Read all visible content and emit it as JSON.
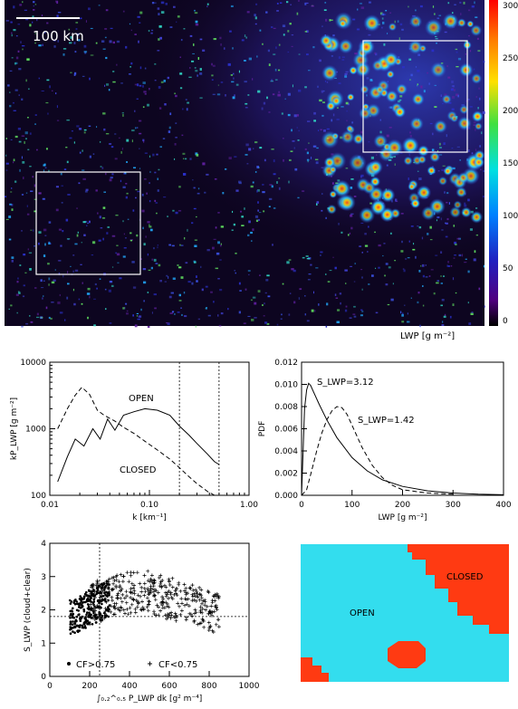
{
  "image_panel": {
    "scale_bar_label": "100 km",
    "colorbar": {
      "ticks": [
        "300",
        "250",
        "200",
        "150",
        "100",
        "50",
        "0"
      ],
      "label": "LWP [g m⁻²]"
    }
  },
  "chart_data": [
    {
      "type": "line",
      "panel": "spectra",
      "xlabel": "k [km⁻¹]",
      "ylabel": "kP_LWP [g m⁻²]",
      "xscale": "log",
      "yscale": "log",
      "xlim": [
        0.01,
        1.0
      ],
      "ylim": [
        100,
        10000
      ],
      "x_ticks": [
        "0.01",
        "0.10",
        "1.00"
      ],
      "y_ticks": [
        "100",
        "1000",
        "10000"
      ],
      "vlines": [
        0.2,
        0.5
      ],
      "series": [
        {
          "name": "OPEN",
          "style": "solid",
          "x": [
            0.012,
            0.015,
            0.018,
            0.022,
            0.027,
            0.032,
            0.038,
            0.045,
            0.055,
            0.07,
            0.09,
            0.12,
            0.16,
            0.2,
            0.25,
            0.3,
            0.38,
            0.45,
            0.5
          ],
          "y": [
            160,
            380,
            700,
            550,
            1000,
            700,
            1400,
            950,
            1600,
            1800,
            2000,
            1900,
            1600,
            1100,
            800,
            600,
            420,
            320,
            290
          ]
        },
        {
          "name": "CLOSED",
          "style": "dashed",
          "x": [
            0.012,
            0.015,
            0.018,
            0.021,
            0.025,
            0.03,
            0.035,
            0.045,
            0.055,
            0.07,
            0.09,
            0.12,
            0.16,
            0.2,
            0.25,
            0.3,
            0.38,
            0.45
          ],
          "y": [
            1000,
            2000,
            3200,
            4200,
            3300,
            1900,
            1600,
            1300,
            1050,
            850,
            650,
            480,
            350,
            260,
            190,
            150,
            115,
            100
          ]
        }
      ]
    },
    {
      "type": "line",
      "panel": "pdf",
      "xlabel": "LWP [g m⁻²]",
      "ylabel": "PDF",
      "xlim": [
        0,
        400
      ],
      "ylim": [
        0,
        0.012
      ],
      "x_ticks": [
        "0",
        "100",
        "200",
        "300",
        "400"
      ],
      "y_ticks": [
        "0.000",
        "0.002",
        "0.004",
        "0.006",
        "0.008",
        "0.010",
        "0.012"
      ],
      "annotations": [
        "S_LWP=3.12",
        "S_LWP=1.42"
      ],
      "series": [
        {
          "style": "solid",
          "x": [
            0,
            3,
            6,
            10,
            14,
            18,
            25,
            35,
            50,
            70,
            100,
            130,
            160,
            200,
            250,
            300,
            350,
            400
          ],
          "y": [
            0.0,
            0.004,
            0.0078,
            0.0095,
            0.0101,
            0.0099,
            0.0092,
            0.0082,
            0.0068,
            0.0052,
            0.0034,
            0.0022,
            0.0014,
            0.0008,
            0.0004,
            0.0002,
            0.0001,
            5e-05
          ]
        },
        {
          "style": "dashed",
          "x": [
            0,
            10,
            20,
            30,
            40,
            50,
            60,
            70,
            80,
            90,
            100,
            120,
            140,
            160,
            180,
            200,
            250,
            300
          ],
          "y": [
            0.0,
            0.0005,
            0.0022,
            0.004,
            0.0056,
            0.0068,
            0.0076,
            0.008,
            0.0079,
            0.0073,
            0.0063,
            0.0043,
            0.0027,
            0.0016,
            0.0009,
            0.0005,
            0.0002,
            0.0001
          ]
        }
      ]
    },
    {
      "type": "scatter",
      "panel": "skewness",
      "xlabel": "∫₀.₂^₀.₅ P_LWP dk [g² m⁻⁴]",
      "ylabel": "S_LWP (cloud+clear)",
      "xlim": [
        0,
        1000
      ],
      "ylim": [
        0,
        4
      ],
      "x_ticks": [
        "0",
        "200",
        "400",
        "600",
        "800",
        "1000"
      ],
      "y_ticks": [
        "0",
        "1",
        "2",
        "3",
        "4"
      ],
      "legend": [
        "CF>0.75",
        "CF<0.75"
      ],
      "vline": 250,
      "hline": 1.8
    }
  ],
  "mask_panel": {
    "labels": [
      "OPEN",
      "CLOSED"
    ],
    "colors": {
      "open": "#33ddee",
      "closed": "#ff3a12"
    }
  }
}
